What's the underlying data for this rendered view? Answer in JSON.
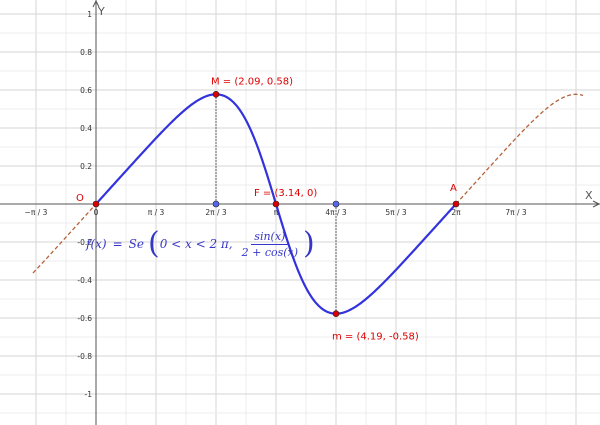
{
  "chart_data": {
    "type": "line",
    "xlabel": "X",
    "ylabel": "Y",
    "xlim": [
      -1.1,
      8.5
    ],
    "ylim": [
      -1.1,
      1.0
    ],
    "grid": true,
    "x_ticks": [
      {
        "value": -1.0472,
        "label": "−π / 3"
      },
      {
        "value": 0,
        "label": "0"
      },
      {
        "value": 1.0472,
        "label": "π / 3"
      },
      {
        "value": 2.0944,
        "label": "2π / 3"
      },
      {
        "value": 3.1416,
        "label": "π"
      },
      {
        "value": 4.1888,
        "label": "4π / 3"
      },
      {
        "value": 5.236,
        "label": "5π / 3"
      },
      {
        "value": 6.2832,
        "label": "2π"
      },
      {
        "value": 7.3304,
        "label": "7π / 3"
      }
    ],
    "y_ticks": [
      {
        "value": 1,
        "label": "1"
      },
      {
        "value": 0.8,
        "label": "0.8"
      },
      {
        "value": 0.6,
        "label": "0.6"
      },
      {
        "value": 0.4,
        "label": "0.4"
      },
      {
        "value": 0.2,
        "label": "0.2"
      },
      {
        "value": -0.2,
        "label": "-0.2"
      },
      {
        "value": -0.4,
        "label": "-0.4"
      },
      {
        "value": -0.6,
        "label": "-0.6"
      },
      {
        "value": -0.8,
        "label": "-0.8"
      },
      {
        "value": -1,
        "label": "-1"
      }
    ],
    "function": "sin(x) / (2 + cos(x))",
    "series": [
      {
        "style": "solid",
        "color": "#3333dd",
        "domain": [
          0,
          6.2832
        ]
      },
      {
        "style": "dashed",
        "color": "#b5623b",
        "domain": [
          -1.1,
          0
        ]
      },
      {
        "style": "dashed",
        "color": "#b5623b",
        "domain": [
          6.2832,
          8.5
        ]
      }
    ],
    "points": [
      {
        "id": "O",
        "label": "O",
        "x": 0,
        "y": 0,
        "color": "#dd0000"
      },
      {
        "id": "M",
        "label": "M = (2.09, 0.58)",
        "x": 2.0944,
        "y": 0.5774,
        "color": "#dd0000"
      },
      {
        "id": "F",
        "label": "F = (3.14, 0)",
        "x": 3.1416,
        "y": 0,
        "color": "#dd0000"
      },
      {
        "id": "m",
        "label": "m = (4.19, -0.58)",
        "x": 4.1888,
        "y": -0.5774,
        "color": "#dd0000"
      },
      {
        "id": "A",
        "label": "A",
        "x": 6.2832,
        "y": 0,
        "color": "#dd0000"
      },
      {
        "id": "Mx",
        "label": "",
        "x": 2.0944,
        "y": 0,
        "color": "#5566ee"
      },
      {
        "id": "mx",
        "label": "",
        "x": 4.1888,
        "y": 0,
        "color": "#5566ee"
      }
    ],
    "drop_lines": [
      {
        "x": 2.0944,
        "y": 0.5774
      },
      {
        "x": 4.1888,
        "y": -0.5774
      }
    ],
    "formula": {
      "lhs": "f(x)",
      "eq": "=",
      "fn": "Se",
      "condition": "0 < x < 2 π,",
      "numerator": "sin(x)",
      "denominator": "2 + cos(x)"
    }
  }
}
